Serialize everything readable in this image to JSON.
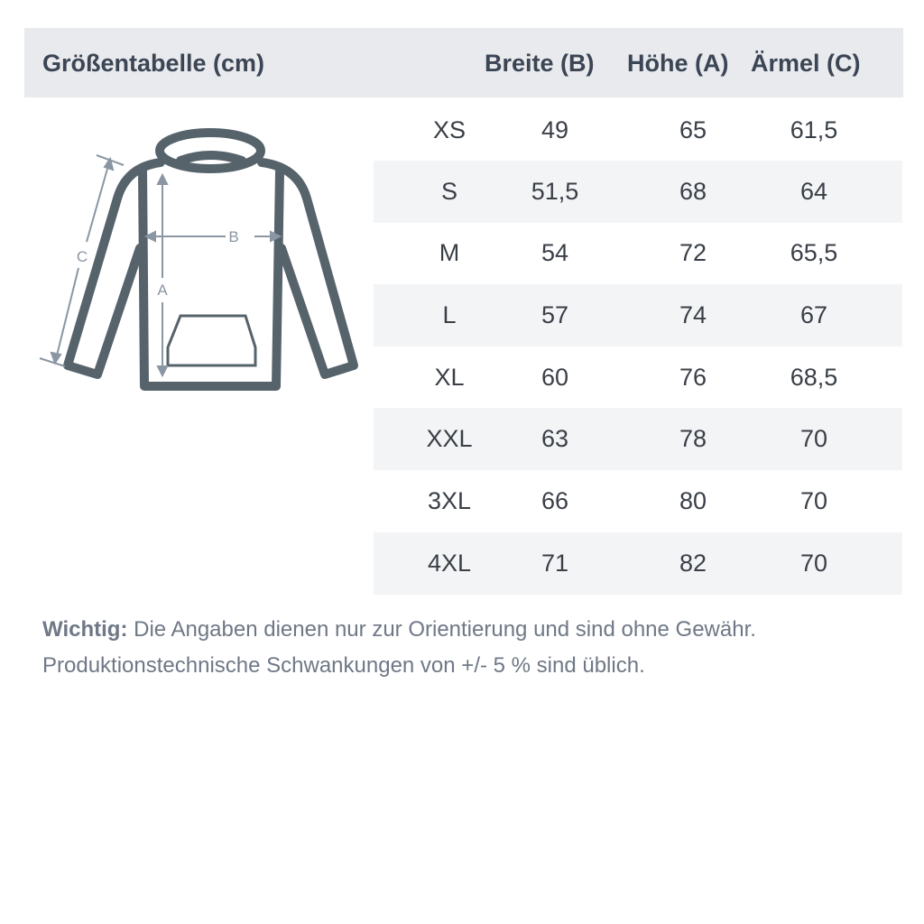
{
  "header": {
    "title": "Größentabelle (cm)",
    "columns": [
      "Breite (B)",
      "Höhe (A)",
      "Ärmel (C)"
    ]
  },
  "diagram": {
    "labels": {
      "a": "A",
      "b": "B",
      "c": "C"
    },
    "outline_color": "#56636b",
    "arrow_color": "#8a96a3"
  },
  "rows": [
    {
      "size": "XS",
      "breite": "49",
      "hoehe": "65",
      "aermel": "61,5"
    },
    {
      "size": "S",
      "breite": "51,5",
      "hoehe": "68",
      "aermel": "64"
    },
    {
      "size": "M",
      "breite": "54",
      "hoehe": "72",
      "aermel": "65,5"
    },
    {
      "size": "L",
      "breite": "57",
      "hoehe": "74",
      "aermel": "67"
    },
    {
      "size": "XL",
      "breite": "60",
      "hoehe": "76",
      "aermel": "68,5"
    },
    {
      "size": "XXL",
      "breite": "63",
      "hoehe": "78",
      "aermel": "70"
    },
    {
      "size": "3XL",
      "breite": "66",
      "hoehe": "80",
      "aermel": "70"
    },
    {
      "size": "4XL",
      "breite": "71",
      "hoehe": "82",
      "aermel": "70"
    }
  ],
  "note": {
    "label": "Wichtig:",
    "line1": " Die Angaben dienen nur zur Orientierung und sind ohne Gewähr.",
    "line2": "Produktionstechnische Schwankungen von +/- 5 % sind üblich."
  }
}
